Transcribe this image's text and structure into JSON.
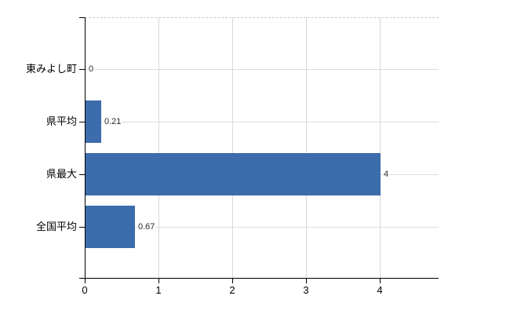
{
  "chart_data": {
    "type": "bar",
    "orientation": "horizontal",
    "title": "",
    "xlabel": "",
    "ylabel": "",
    "categories": [
      "東みよし町",
      "県平均",
      "県最大",
      "全国平均"
    ],
    "values": [
      0,
      0.21,
      4,
      0.67
    ],
    "value_labels": [
      "0",
      "0.21",
      "4",
      "0.67"
    ],
    "series": [
      {
        "name": "",
        "values": [
          0,
          0.21,
          4,
          0.67
        ]
      }
    ],
    "xticks": [
      "0",
      "1",
      "2",
      "3",
      "4"
    ],
    "xtick_values": [
      0,
      1,
      2,
      3,
      4
    ],
    "xlim": [
      0,
      4.8
    ],
    "grid": true,
    "legend": false,
    "colors": {
      "bar": "#3c6cab",
      "axis": "#000000",
      "vgrid": "#d8d8d8",
      "hgrid": "#dbe0db",
      "frame_dash": "#cfcfcf",
      "label_text": "#000000",
      "value_text": "#2b2b2b",
      "background": "#ffffff"
    }
  }
}
